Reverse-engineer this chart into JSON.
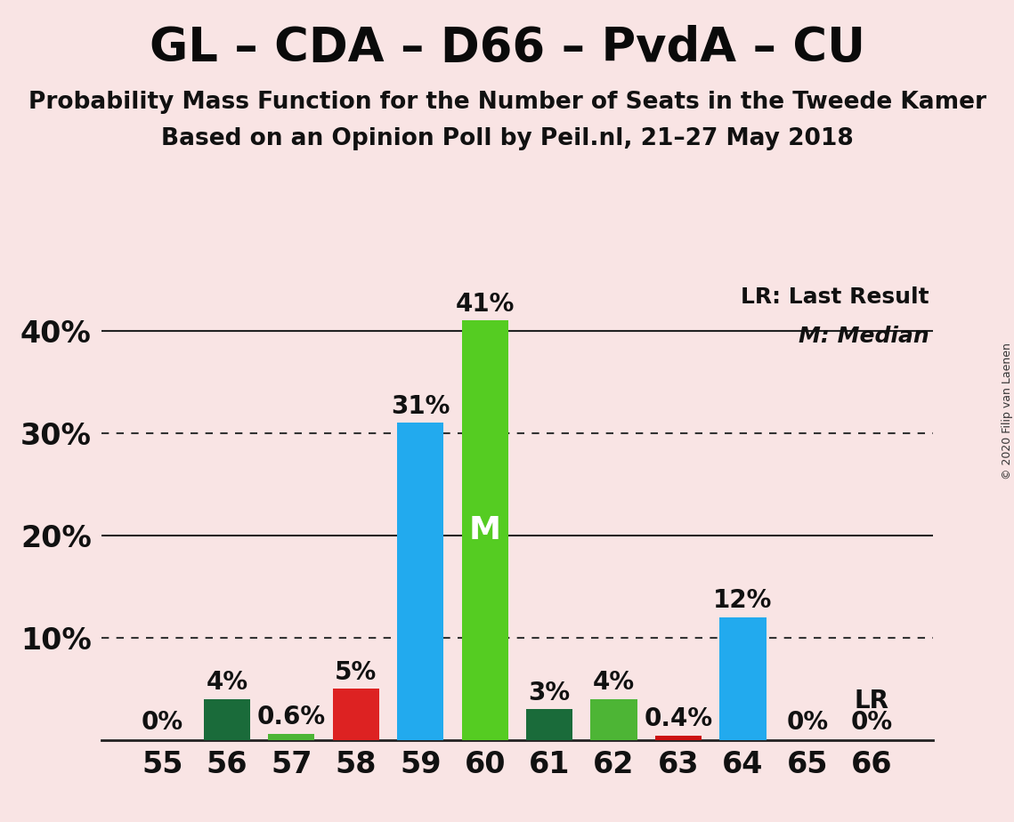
{
  "title": "GL – CDA – D66 – PvdA – CU",
  "subtitle1": "Probability Mass Function for the Number of Seats in the Tweede Kamer",
  "subtitle2": "Based on an Opinion Poll by Peil.nl, 21–27 May 2018",
  "copyright": "© 2020 Filip van Laenen",
  "legend_lr": "LR: Last Result",
  "legend_m": "M: Median",
  "background_color": "#f9e4e4",
  "seats": [
    55,
    56,
    57,
    58,
    59,
    60,
    61,
    62,
    63,
    64,
    65,
    66
  ],
  "values": [
    0.0,
    4.0,
    0.6,
    5.0,
    31.0,
    41.0,
    3.0,
    4.0,
    0.4,
    12.0,
    0.0,
    0.0
  ],
  "labels": [
    "0%",
    "4%",
    "0.6%",
    "5%",
    "31%",
    "41%",
    "3%",
    "4%",
    "0.4%",
    "12%",
    "0%",
    "0%"
  ],
  "bar_colors": [
    "#f0c0c0",
    "#1a6b3a",
    "#4db535",
    "#dd2222",
    "#22aaee",
    "#55cc22",
    "#1a6b3a",
    "#4db535",
    "#cc1111",
    "#22aaee",
    "#f0c0c0",
    "#f0c0c0"
  ],
  "median_seat": 60,
  "median_label": "M",
  "median_label_color": "#ffffff",
  "lr_seat": 66,
  "lr_label": "LR",
  "ylim": [
    0,
    45
  ],
  "ytick_positions": [
    10,
    20,
    30,
    40
  ],
  "ytick_labels": [
    "10%",
    "20%",
    "30%",
    "40%"
  ],
  "dotted_lines": [
    30,
    10
  ],
  "solid_lines": [
    40,
    20
  ],
  "title_fontsize": 38,
  "subtitle_fontsize": 19,
  "axis_label_fontsize": 24,
  "bar_label_fontsize": 20,
  "median_label_fontsize": 26,
  "legend_fontsize": 18
}
